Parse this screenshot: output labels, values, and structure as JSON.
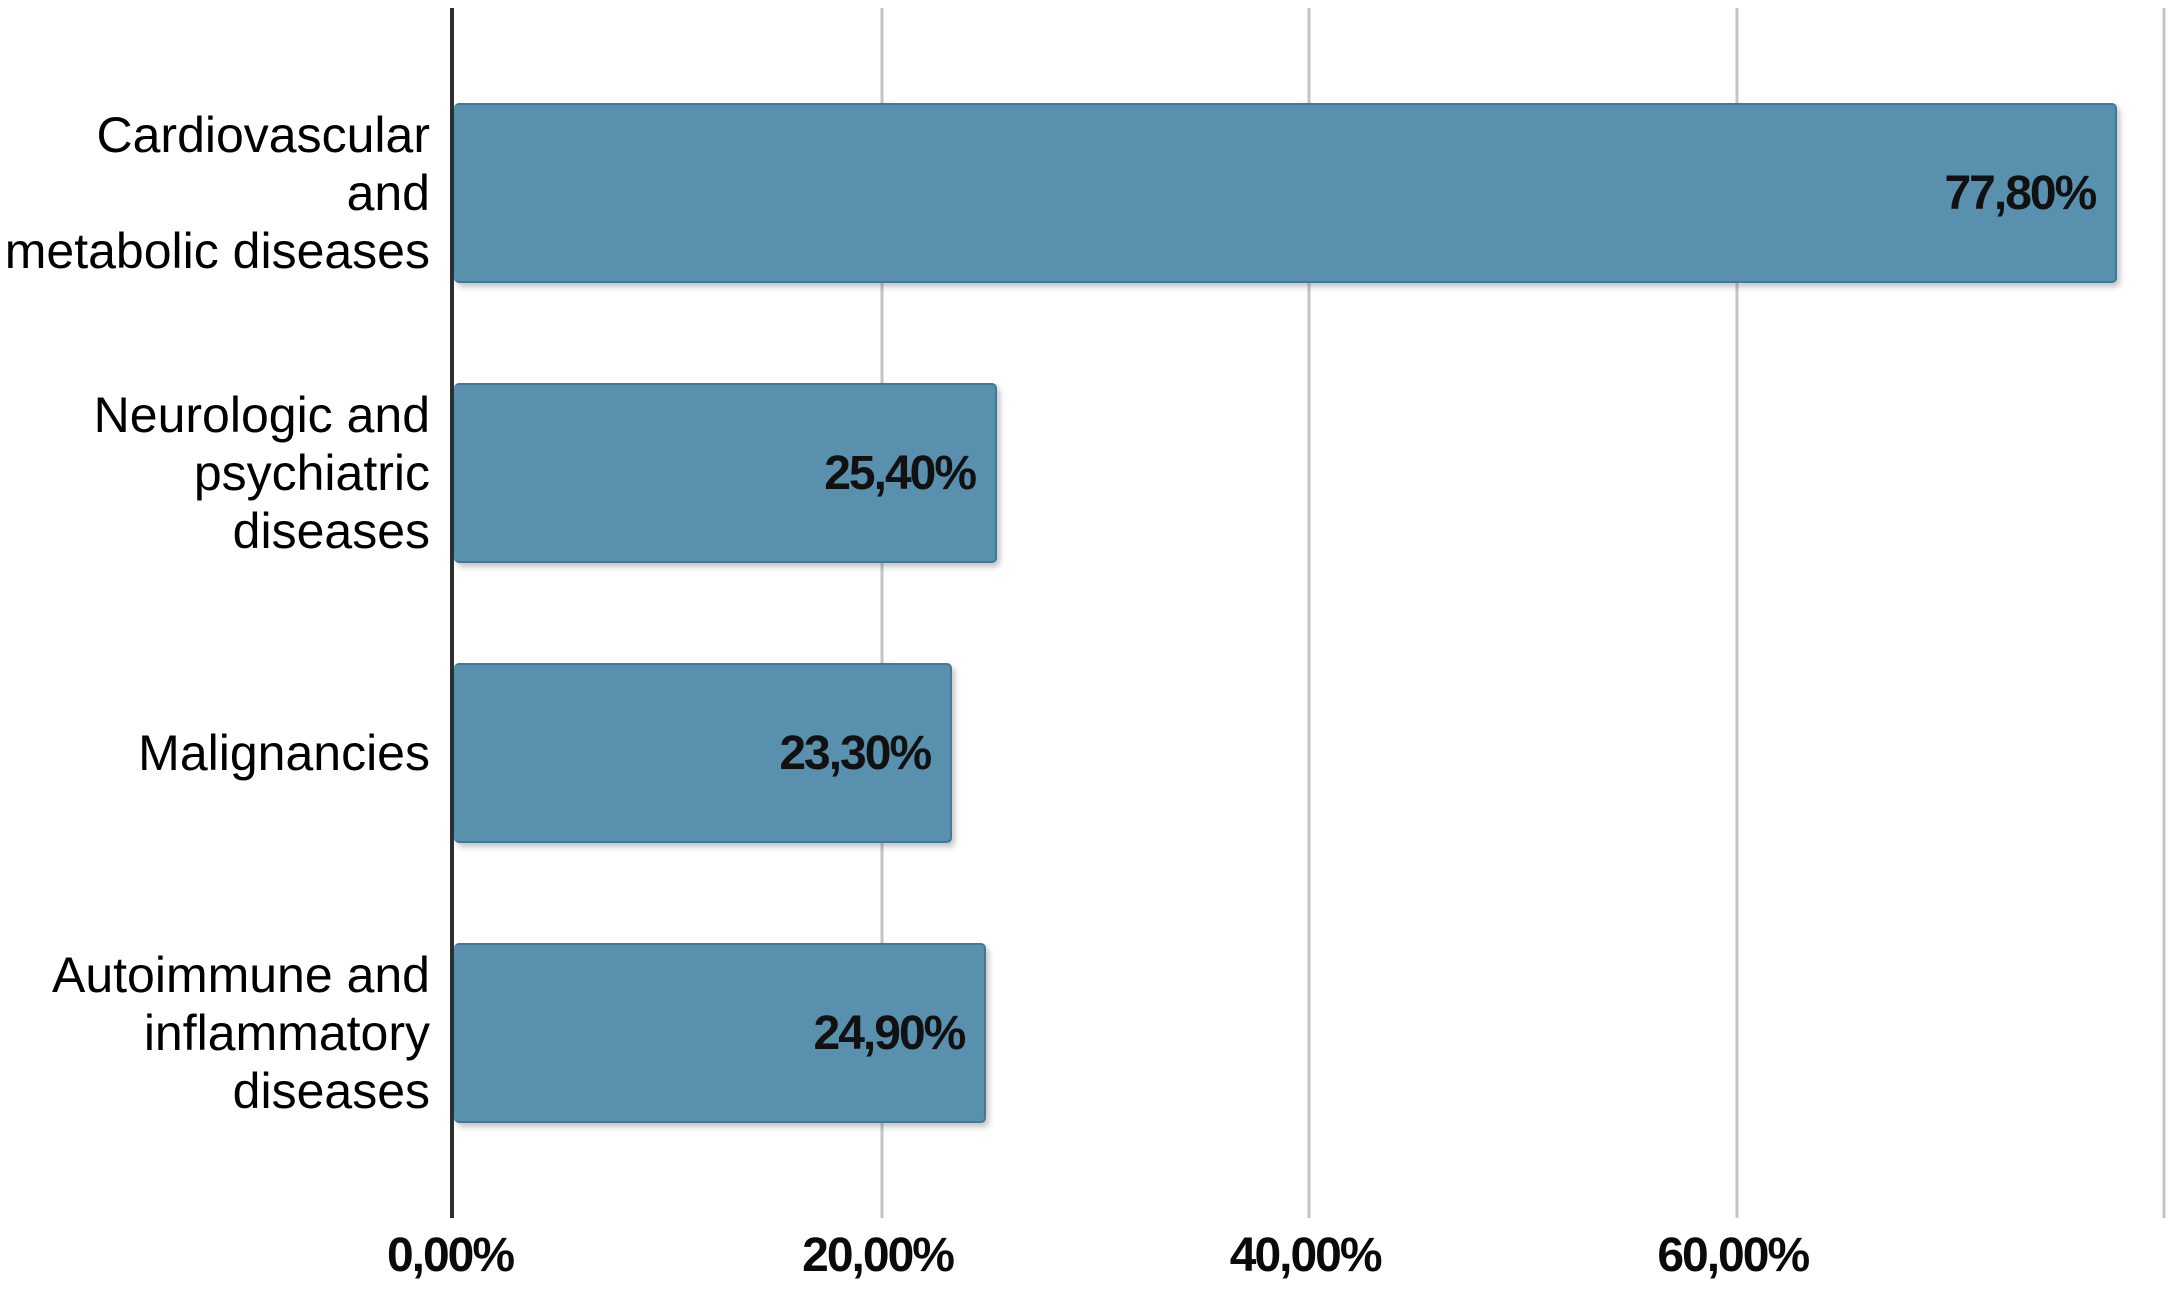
{
  "chart_data": {
    "type": "bar",
    "orientation": "horizontal",
    "title": "",
    "xlabel": "",
    "ylabel": "",
    "grid": "vertical",
    "legend": "none",
    "xlim": [
      0,
      80.5
    ],
    "bar_color": "#5890ae",
    "bar_border_color": "#3f7a97",
    "axis_color": "#2e2e2e",
    "gridline_color": "#c2c5c7",
    "categories": [
      "Cardiovascular and metabolic diseases",
      "Neurologic and psychiatric diseases",
      "Malignancies",
      "Autoimmune and inflammatory diseases"
    ],
    "values": [
      77.8,
      25.4,
      23.3,
      24.9
    ],
    "bars": [
      {
        "category": "Cardiovascular and\nmetabolic diseases",
        "value": 77.8,
        "value_label": "77,80%"
      },
      {
        "category": "Neurologic and\npsychiatric\ndiseases",
        "value": 25.4,
        "value_label": "25,40%"
      },
      {
        "category": "Malignancies",
        "value": 23.3,
        "value_label": "23,30%"
      },
      {
        "category": "Autoimmune and\ninflammatory\ndiseases",
        "value": 24.9,
        "value_label": "24,90%"
      }
    ],
    "x_axis": {
      "ticks": [
        {
          "label": "0,00%",
          "value": 0
        },
        {
          "label": "20,00%",
          "value": 20
        },
        {
          "label": "40,00%",
          "value": 40
        },
        {
          "label": "60,00%",
          "value": 60
        }
      ],
      "gridline_values": [
        20,
        40,
        60,
        80
      ]
    }
  }
}
